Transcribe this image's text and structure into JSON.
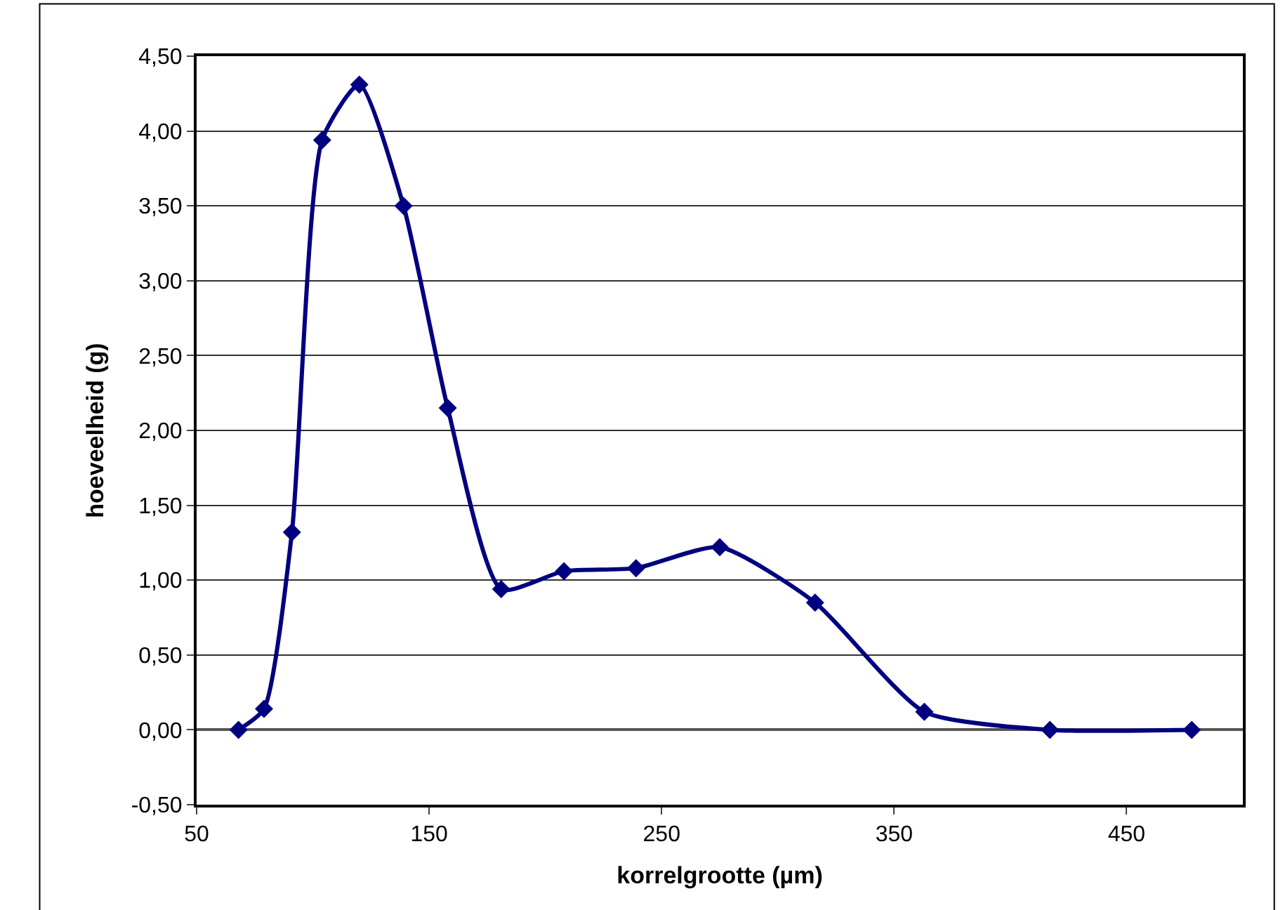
{
  "chart_data": {
    "type": "line",
    "xlabel": "korrelgrootte (µm)",
    "ylabel": "hoeveelheid (g)",
    "x": [
      68,
      79,
      91,
      104,
      120,
      139,
      158,
      181,
      208,
      239,
      275,
      316,
      363,
      417,
      478
    ],
    "series": [
      {
        "color": "#000080",
        "values": [
          0,
          0.14,
          1.32,
          3.94,
          4.31,
          3.5,
          2.15,
          0.94,
          1.06,
          1.08,
          1.22,
          0.85,
          0.12,
          0,
          0
        ]
      }
    ],
    "xlim": [
      50,
      500
    ],
    "xticks": [
      50,
      150,
      250,
      350,
      450
    ],
    "ylim": [
      -0.5,
      4.5
    ],
    "yticks": [
      {
        "value": -0.5,
        "label": "-0,50"
      },
      {
        "value": 0,
        "label": "0,00"
      },
      {
        "value": 0.5,
        "label": "0,50"
      },
      {
        "value": 1,
        "label": "1,00"
      },
      {
        "value": 1.5,
        "label": "1,50"
      },
      {
        "value": 2,
        "label": "2,00"
      },
      {
        "value": 2.5,
        "label": "2,50"
      },
      {
        "value": 3,
        "label": "3,00"
      },
      {
        "value": 3.5,
        "label": "3,50"
      },
      {
        "value": 4,
        "label": "4,00"
      },
      {
        "value": 4.5,
        "label": "4,50"
      }
    ],
    "grid": "y",
    "marker": "diamond",
    "line_style": "solid"
  }
}
